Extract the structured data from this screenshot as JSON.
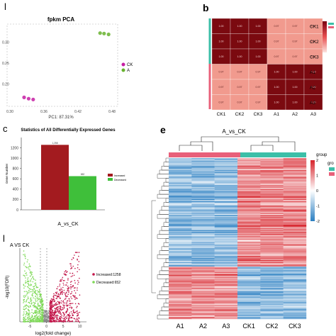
{
  "panels": {
    "a": {
      "letter": "l"
    },
    "b": {
      "letter": "b"
    },
    "c": {
      "letter": "c"
    },
    "d": {
      "letter": "l"
    },
    "e": {
      "letter": "e"
    }
  },
  "chart_data": [
    {
      "panel": "a",
      "type": "scatter",
      "title": "fpkm PCA",
      "xlabel": "PC1: 87.31%",
      "x_ticks": [
        "0.30",
        "0.36",
        "0.42",
        "0.48"
      ],
      "y_ticks": [
        "0.30",
        "0.25",
        "0.20"
      ],
      "legend": [
        "CK",
        "A"
      ],
      "legend_colors": [
        "#c61fa3",
        "#67b22e"
      ],
      "series": [
        {
          "name": "CK",
          "points": [
            [
              0.325,
              0.168
            ],
            [
              0.333,
              0.165
            ],
            [
              0.341,
              0.163
            ]
          ]
        },
        {
          "name": "A",
          "points": [
            [
              0.459,
              0.322
            ],
            [
              0.466,
              0.321
            ],
            [
              0.474,
              0.319
            ]
          ]
        }
      ]
    },
    {
      "panel": "b",
      "type": "heatmap",
      "rows": [
        "CK1",
        "CK2",
        "CK3",
        "A1",
        "A2",
        "A3"
      ],
      "cols": [
        "CK1",
        "CK2",
        "CK3",
        "A1",
        "A2",
        "A3"
      ],
      "values": [
        [
          1.0,
          1.0,
          1.0,
          0.97,
          0.97,
          0.97
        ],
        [
          1.0,
          1.0,
          1.0,
          0.97,
          0.97,
          0.97
        ],
        [
          1.0,
          1.0,
          1.0,
          0.97,
          0.97,
          0.97
        ],
        [
          0.97,
          0.97,
          0.97,
          1.0,
          1.0,
          1.0
        ],
        [
          0.97,
          0.97,
          0.97,
          1.0,
          1.0,
          1.0
        ],
        [
          0.97,
          0.97,
          0.97,
          1.0,
          1.0,
          1.0
        ]
      ],
      "cell_labels": [
        [
          "1.00",
          "1.00",
          "1.00",
          "0.97",
          "0.97",
          "0.97"
        ],
        [
          "1.00",
          "1.00",
          "1.00",
          "0.97",
          "0.97",
          "0.97"
        ],
        [
          "1.00",
          "1.00",
          "1.00",
          "0.97",
          "0.97",
          "0.97"
        ],
        [
          "0.97",
          "0.97",
          "0.97",
          "1.00",
          "1.00",
          "1.00"
        ],
        [
          "0.97",
          "0.97",
          "0.97",
          "1.00",
          "1.00",
          "1.00"
        ],
        [
          "0.97",
          "0.97",
          "0.97",
          "1.00",
          "1.00",
          "1.00"
        ]
      ],
      "group_colors": [
        "#3cbfa8",
        "#e8607a"
      ]
    },
    {
      "panel": "c",
      "type": "bar",
      "title": "Statistics of All Differentially Expressed Genes",
      "ylabel": "Gene Number",
      "xlabel": "A_vs_CK",
      "y_ticks": [
        "0",
        "200",
        "400",
        "600",
        "800",
        "1000",
        "1200"
      ],
      "ylim": [
        0,
        1400
      ],
      "series": [
        {
          "name": "Increased",
          "values": [
            1258
          ],
          "label": "1,258",
          "color": "#a31b1f"
        },
        {
          "name": "Decreased",
          "values": [
            652
          ],
          "label": "652",
          "color": "#3fbf3a"
        }
      ]
    },
    {
      "panel": "d",
      "type": "scatter",
      "title": "A VS CK",
      "xlabel": "log2(fold change)",
      "ylabel": "-log10(FDR)",
      "x_ticks": [
        "-5",
        "0",
        "5",
        "10"
      ],
      "xlim": [
        -8,
        12
      ],
      "ylim": [
        0,
        10
      ],
      "legend": [
        "Increased:1258",
        "Decreased:652"
      ],
      "legend_colors": [
        "#c2174a",
        "#7ed957"
      ]
    },
    {
      "panel": "e",
      "type": "heatmap",
      "title": "A_vs_CK",
      "cols": [
        "A1",
        "A2",
        "A3",
        "CK1",
        "CK2",
        "CK3"
      ],
      "legend_title": "group",
      "scale_ticks": [
        "2",
        "1",
        "0",
        "-1",
        "-2"
      ],
      "legend_title_2": "gro",
      "group_colors": [
        "#e8607a",
        "#3cbfa8"
      ]
    }
  ]
}
